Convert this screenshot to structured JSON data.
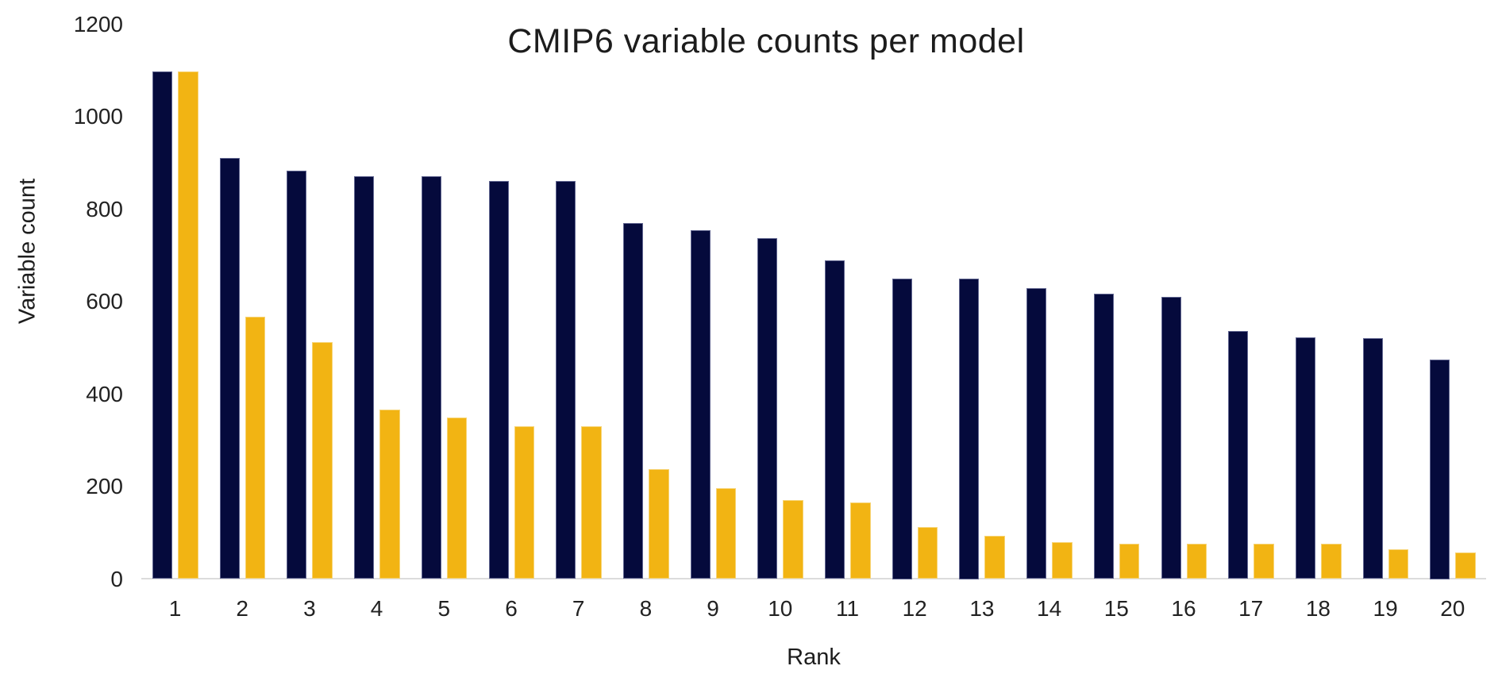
{
  "chart_data": {
    "type": "bar",
    "title": "CMIP6 variable counts per model",
    "xlabel": "Rank",
    "ylabel": "Variable count",
    "categories": [
      "1",
      "2",
      "3",
      "4",
      "5",
      "6",
      "7",
      "8",
      "9",
      "10",
      "11",
      "12",
      "13",
      "14",
      "15",
      "16",
      "17",
      "18",
      "19",
      "20"
    ],
    "series": [
      {
        "name": "series-navy",
        "color": "#050a3c",
        "values": [
          1098,
          910,
          884,
          871,
          871,
          861,
          861,
          770,
          754,
          737,
          690,
          650,
          650,
          629,
          617,
          611,
          536,
          523,
          521,
          475
        ]
      },
      {
        "name": "series-gold",
        "color": "#f2b413",
        "values": [
          1098,
          567,
          512,
          366,
          349,
          331,
          331,
          237,
          196,
          171,
          165,
          112,
          93,
          80,
          77,
          77,
          76,
          76,
          64,
          57
        ]
      }
    ],
    "ylim": [
      0,
      1200
    ],
    "yticks": [
      0,
      200,
      400,
      600,
      800,
      1000,
      1200
    ],
    "grid": false,
    "legend": "none",
    "axis_line_color": "#dcdcdc",
    "text_color": "#1d1d1d",
    "background": "#ffffff"
  }
}
